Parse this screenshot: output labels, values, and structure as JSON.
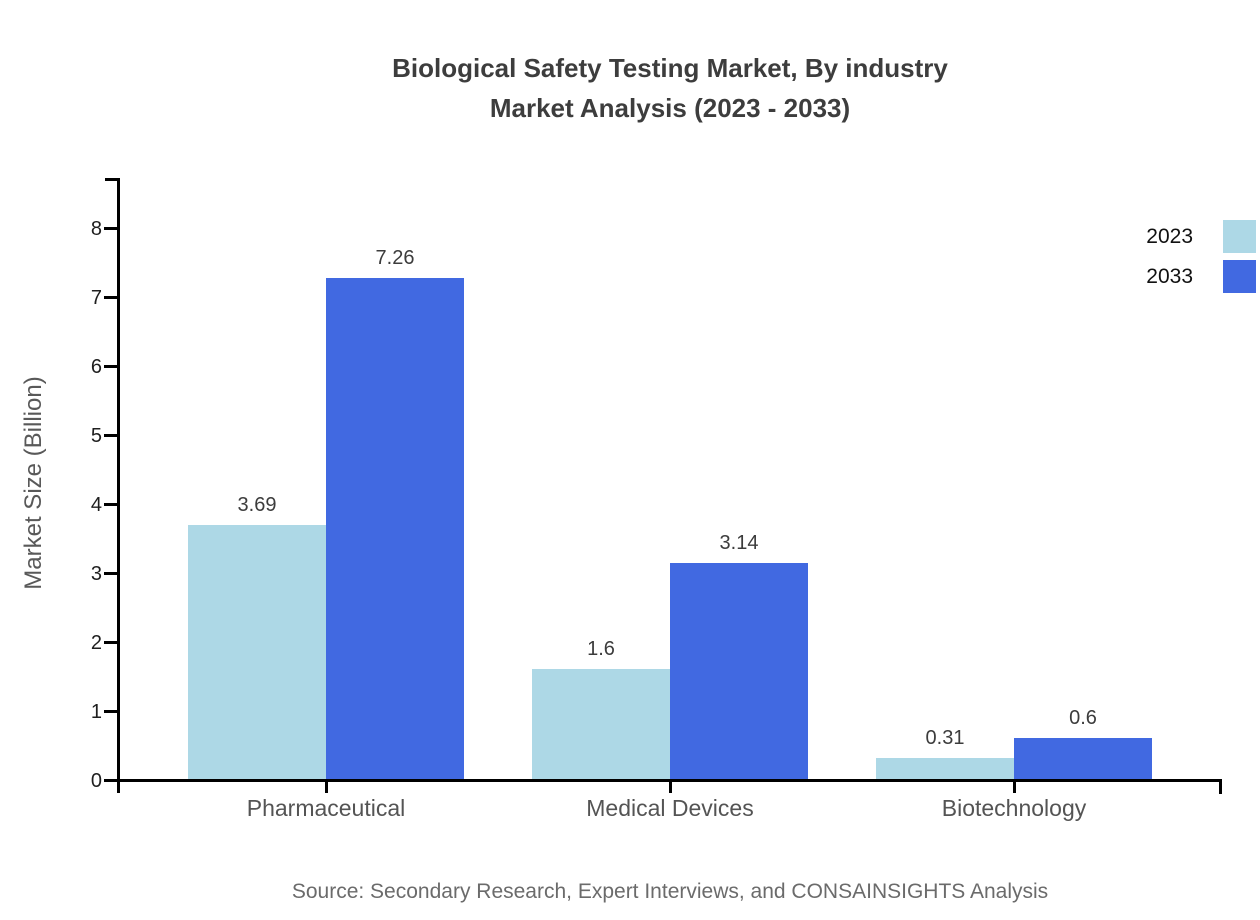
{
  "title": {
    "line1": "Biological Safety Testing Market, By industry",
    "line2": "Market Analysis (2023 - 2033)"
  },
  "y_axis_label": "Market Size (Billion)",
  "source": "Source: Secondary Research, Expert Interviews, and CONSAINSIGHTS Analysis",
  "colors": {
    "series_2023": "#add8e6",
    "series_2033": "#4169e1",
    "axis": "#000000"
  },
  "legend": {
    "items": [
      {
        "label": "2023",
        "color": "#add8e6"
      },
      {
        "label": "2033",
        "color": "#4169e1"
      }
    ]
  },
  "chart_data": {
    "type": "bar",
    "title": "Biological Safety Testing Market, By industry Market Analysis (2023 - 2033)",
    "categories": [
      "Pharmaceutical",
      "Medical Devices",
      "Biotechnology"
    ],
    "series": [
      {
        "name": "2023",
        "color": "#add8e6",
        "values": [
          3.69,
          1.6,
          0.31
        ],
        "value_labels": [
          "3.69",
          "1.6",
          "0.31"
        ]
      },
      {
        "name": "2033",
        "color": "#4169e1",
        "values": [
          7.26,
          3.14,
          0.6
        ],
        "value_labels": [
          "7.26",
          "3.14",
          "0.6"
        ]
      }
    ],
    "xlabel": "",
    "ylabel": "Market Size (Billion)",
    "ylim": [
      0,
      8.7
    ],
    "y_ticks": [
      0,
      1,
      2,
      3,
      4,
      5,
      6,
      7,
      8
    ],
    "grid": false,
    "legend_position": "top-right",
    "bar_value_labels_shown": true
  }
}
